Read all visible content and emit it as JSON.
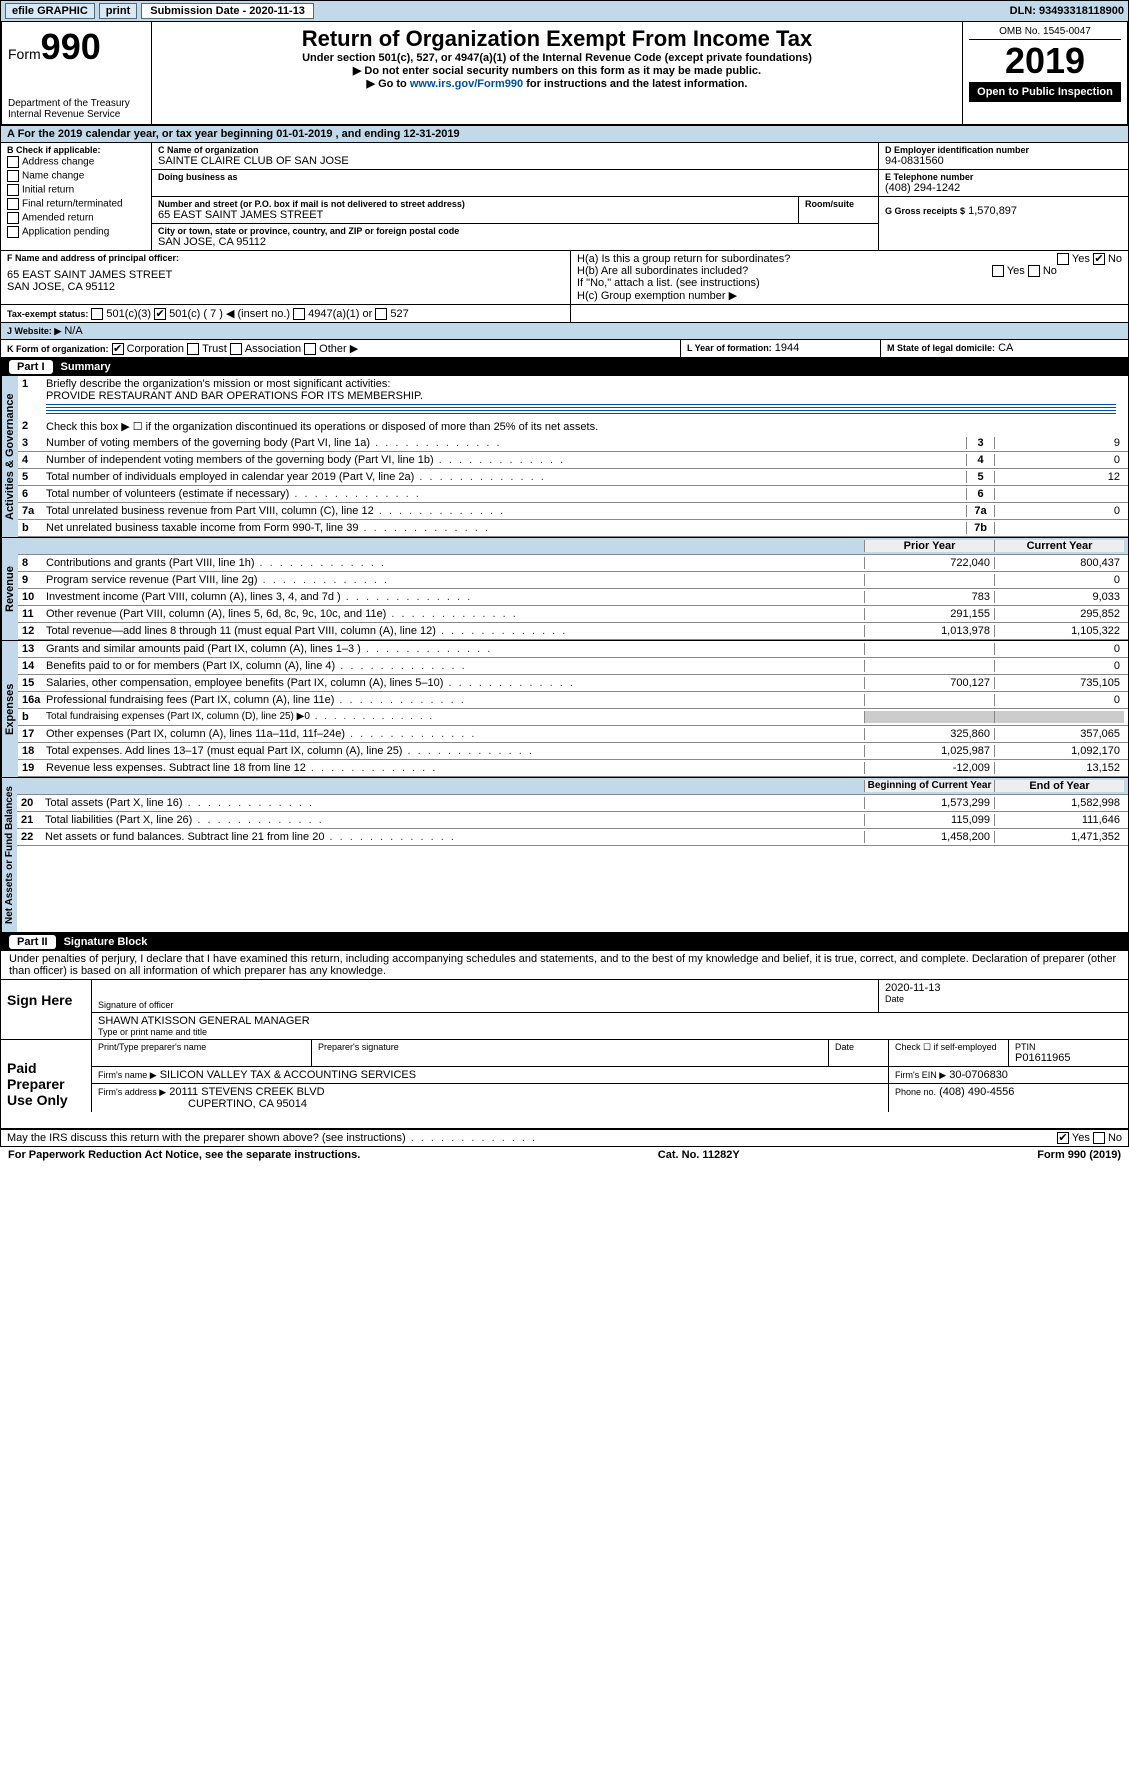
{
  "topbar": {
    "efile": "efile GRAPHIC",
    "print": "print",
    "subdate_label": "Submission Date - 2020-11-13",
    "dln": "DLN: 93493318118900"
  },
  "header": {
    "form": "Form",
    "form_no": "990",
    "dept": "Department of the Treasury\nInternal Revenue Service",
    "title": "Return of Organization Exempt From Income Tax",
    "sub1": "Under section 501(c), 527, or 4947(a)(1) of the Internal Revenue Code (except private foundations)",
    "sub2": "▶ Do not enter social security numbers on this form as it may be made public.",
    "sub3_pre": "▶ Go to ",
    "sub3_link": "www.irs.gov/Form990",
    "sub3_post": " for instructions and the latest information.",
    "omb": "OMB No. 1545-0047",
    "year": "2019",
    "open": "Open to Public Inspection"
  },
  "taxyear": "A For the 2019 calendar year, or tax year beginning 01-01-2019    , and ending 12-31-2019",
  "secB": {
    "label": "B Check if applicable:",
    "items": [
      "Address change",
      "Name change",
      "Initial return",
      "Final return/terminated",
      "Amended return",
      "Application pending"
    ]
  },
  "secC": {
    "name_label": "C Name of organization",
    "name": "SAINTE CLAIRE CLUB OF SAN JOSE",
    "dba_label": "Doing business as",
    "addr_label": "Number and street (or P.O. box if mail is not delivered to street address)",
    "room_label": "Room/suite",
    "addr": "65 EAST SAINT JAMES STREET",
    "city_label": "City or town, state or province, country, and ZIP or foreign postal code",
    "city": "SAN JOSE, CA  95112"
  },
  "secD": {
    "label": "D Employer identification number",
    "ein": "94-0831560"
  },
  "secE": {
    "label": "E Telephone number",
    "phone": "(408) 294-1242"
  },
  "secG": {
    "label": "G Gross receipts $",
    "val": "1,570,897"
  },
  "secF": {
    "label": "F Name and address of principal officer:",
    "addr": "65 EAST SAINT JAMES STREET\nSAN JOSE, CA  95112"
  },
  "secH": {
    "a": "H(a)  Is this a group return for subordinates?",
    "b": "H(b)  Are all subordinates included?",
    "bnote": "If \"No,\" attach a list. (see instructions)",
    "c": "H(c)  Group exemption number ▶",
    "yes": "Yes",
    "no": "No"
  },
  "secI": {
    "label": "Tax-exempt status:",
    "o501c3": "501(c)(3)",
    "o501c": "501(c) ( 7 ) ◀ (insert no.)",
    "o4947": "4947(a)(1) or",
    "o527": "527"
  },
  "secJ": {
    "label": "J   Website: ▶",
    "val": "N/A"
  },
  "secK": {
    "label": "K Form of organization:",
    "corp": "Corporation",
    "trust": "Trust",
    "assoc": "Association",
    "other": "Other ▶"
  },
  "secL": {
    "label": "L Year of formation:",
    "val": "1944"
  },
  "secM": {
    "label": "M State of legal domicile:",
    "val": "CA"
  },
  "partI": {
    "part": "Part I",
    "title": "Summary"
  },
  "act_label": "Activities & Governance",
  "rev_label": "Revenue",
  "exp_label": "Expenses",
  "net_label": "Net Assets or Fund Balances",
  "line1": {
    "num": "1",
    "txt": "Briefly describe the organization's mission or most significant activities:",
    "val": "PROVIDE RESTAURANT AND BAR OPERATIONS FOR ITS MEMBERSHIP."
  },
  "line2": {
    "num": "2",
    "txt": "Check this box ▶ ☐ if the organization discontinued its operations or disposed of more than 25% of its net assets."
  },
  "lines_single": [
    {
      "num": "3",
      "txt": "Number of voting members of the governing body (Part VI, line 1a)",
      "box": "3",
      "val": "9"
    },
    {
      "num": "4",
      "txt": "Number of independent voting members of the governing body (Part VI, line 1b)",
      "box": "4",
      "val": "0"
    },
    {
      "num": "5",
      "txt": "Total number of individuals employed in calendar year 2019 (Part V, line 2a)",
      "box": "5",
      "val": "12"
    },
    {
      "num": "6",
      "txt": "Total number of volunteers (estimate if necessary)",
      "box": "6",
      "val": ""
    },
    {
      "num": "7a",
      "txt": "Total unrelated business revenue from Part VIII, column (C), line 12",
      "box": "7a",
      "val": "0"
    },
    {
      "num": "b",
      "txt": "Net unrelated business taxable income from Form 990-T, line 39",
      "box": "7b",
      "val": ""
    }
  ],
  "col_hdrs": {
    "prior": "Prior Year",
    "current": "Current Year",
    "begin": "Beginning of Current Year",
    "end": "End of Year"
  },
  "lines_revenue": [
    {
      "num": "8",
      "txt": "Contributions and grants (Part VIII, line 1h)",
      "prior": "722,040",
      "current": "800,437"
    },
    {
      "num": "9",
      "txt": "Program service revenue (Part VIII, line 2g)",
      "prior": "",
      "current": "0"
    },
    {
      "num": "10",
      "txt": "Investment income (Part VIII, column (A), lines 3, 4, and 7d )",
      "prior": "783",
      "current": "9,033"
    },
    {
      "num": "11",
      "txt": "Other revenue (Part VIII, column (A), lines 5, 6d, 8c, 9c, 10c, and 11e)",
      "prior": "291,155",
      "current": "295,852"
    },
    {
      "num": "12",
      "txt": "Total revenue—add lines 8 through 11 (must equal Part VIII, column (A), line 12)",
      "prior": "1,013,978",
      "current": "1,105,322"
    }
  ],
  "lines_expenses": [
    {
      "num": "13",
      "txt": "Grants and similar amounts paid (Part IX, column (A), lines 1–3 )",
      "prior": "",
      "current": "0"
    },
    {
      "num": "14",
      "txt": "Benefits paid to or for members (Part IX, column (A), line 4)",
      "prior": "",
      "current": "0"
    },
    {
      "num": "15",
      "txt": "Salaries, other compensation, employee benefits (Part IX, column (A), lines 5–10)",
      "prior": "700,127",
      "current": "735,105"
    },
    {
      "num": "16a",
      "txt": "Professional fundraising fees (Part IX, column (A), line 11e)",
      "prior": "",
      "current": "0"
    },
    {
      "num": "b",
      "txt": "Total fundraising expenses (Part IX, column (D), line 25) ▶0",
      "prior": "—",
      "current": "—"
    },
    {
      "num": "17",
      "txt": "Other expenses (Part IX, column (A), lines 11a–11d, 11f–24e)",
      "prior": "325,860",
      "current": "357,065"
    },
    {
      "num": "18",
      "txt": "Total expenses. Add lines 13–17 (must equal Part IX, column (A), line 25)",
      "prior": "1,025,987",
      "current": "1,092,170"
    },
    {
      "num": "19",
      "txt": "Revenue less expenses. Subtract line 18 from line 12",
      "prior": "-12,009",
      "current": "13,152"
    }
  ],
  "lines_net": [
    {
      "num": "20",
      "txt": "Total assets (Part X, line 16)",
      "prior": "1,573,299",
      "current": "1,582,998"
    },
    {
      "num": "21",
      "txt": "Total liabilities (Part X, line 26)",
      "prior": "115,099",
      "current": "111,646"
    },
    {
      "num": "22",
      "txt": "Net assets or fund balances. Subtract line 21 from line 20",
      "prior": "1,458,200",
      "current": "1,471,352"
    }
  ],
  "partII": {
    "part": "Part II",
    "title": "Signature Block"
  },
  "sig_decl": "Under penalties of perjury, I declare that I have examined this return, including accompanying schedules and statements, and to the best of my knowledge and belief, it is true, correct, and complete. Declaration of preparer (other than officer) is based on all information of which preparer has any knowledge.",
  "sign_here": "Sign Here",
  "sig_officer_label": "Signature of officer",
  "sig_date_label": "Date",
  "sig_date": "2020-11-13",
  "sig_name": "SHAWN ATKISSON  GENERAL MANAGER",
  "sig_name_label": "Type or print name and title",
  "paid": {
    "title": "Paid Preparer Use Only",
    "name_label": "Print/Type preparer's name",
    "sig_label": "Preparer's signature",
    "date_label": "Date",
    "check_label": "Check ☐ if self-employed",
    "ptin_label": "PTIN",
    "ptin": "P01611965",
    "firm_label": "Firm's name    ▶",
    "firm": "SILICON VALLEY TAX & ACCOUNTING SERVICES",
    "ein_label": "Firm's EIN ▶",
    "ein": "30-0706830",
    "addr_label": "Firm's address ▶",
    "addr": "20111 STEVENS CREEK BLVD",
    "city": "CUPERTINO, CA  95014",
    "phone_label": "Phone no.",
    "phone": "(408) 490-4556"
  },
  "discuss": "May the IRS discuss this return with the preparer shown above? (see instructions)",
  "footer": {
    "pra": "For Paperwork Reduction Act Notice, see the separate instructions.",
    "cat": "Cat. No. 11282Y",
    "form": "Form 990 (2019)"
  }
}
